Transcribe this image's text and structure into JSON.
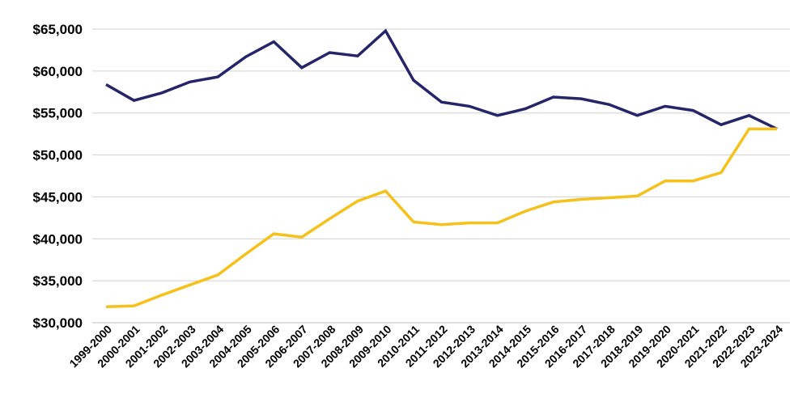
{
  "chart_data": {
    "type": "line",
    "title": "",
    "xlabel": "",
    "ylabel": "",
    "categories": [
      "1999-2000",
      "2000-2001",
      "2001-2002",
      "2002-2003",
      "2003-2004",
      "2004-2005",
      "2005-2006",
      "2006-2007",
      "2007-2008",
      "2008-2009",
      "2009-2010",
      "2010-2011",
      "2011-2012",
      "2012-2013",
      "2013-2014",
      "2014-2015",
      "2015-2016",
      "2016-2017",
      "2017-2018",
      "2018-2019",
      "2019-2020",
      "2020-2021",
      "2021-2022",
      "2022-2023",
      "2023-2024"
    ],
    "yticks": [
      {
        "value": 30000,
        "label": "$30,000"
      },
      {
        "value": 35000,
        "label": "$35,000"
      },
      {
        "value": 40000,
        "label": "$40,000"
      },
      {
        "value": 45000,
        "label": "$45,000"
      },
      {
        "value": 50000,
        "label": "$50,000"
      },
      {
        "value": 55000,
        "label": "$55,000"
      },
      {
        "value": 60000,
        "label": "$60,000"
      },
      {
        "value": 65000,
        "label": "$65,000"
      }
    ],
    "ylim": [
      30000,
      65000
    ],
    "grid": true,
    "legend": "none",
    "series": [
      {
        "color": "#25266a",
        "values": [
          58400,
          56500,
          57400,
          58700,
          59300,
          61700,
          63500,
          60400,
          62200,
          61800,
          64800,
          58900,
          56300,
          55800,
          54700,
          55500,
          56900,
          56700,
          56000,
          54700,
          55800,
          55300,
          53600,
          54700,
          53100
        ]
      },
      {
        "color": "#f6c11a",
        "values": [
          31900,
          32000,
          33300,
          34500,
          35700,
          38200,
          40600,
          40200,
          42400,
          44500,
          45700,
          42000,
          41700,
          41900,
          41900,
          43300,
          44400,
          44700,
          44900,
          45100,
          46900,
          46900,
          47900,
          53100,
          53100
        ]
      }
    ]
  }
}
